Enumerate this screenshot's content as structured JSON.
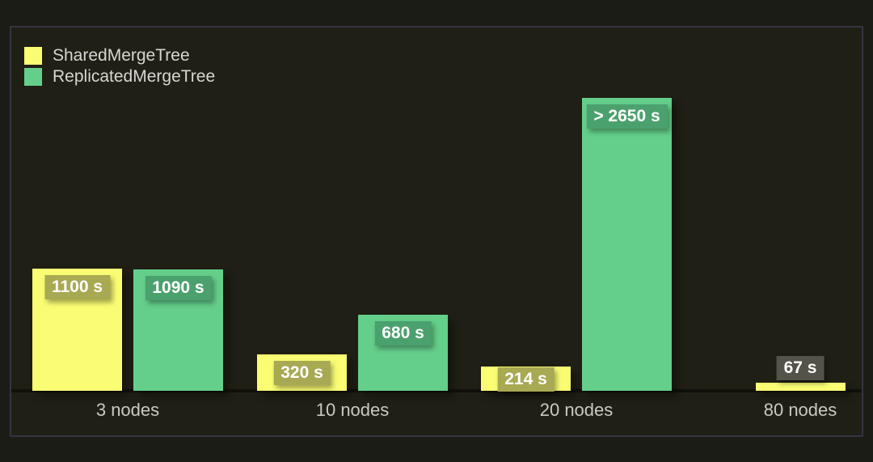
{
  "chart_data": {
    "type": "bar",
    "title": "",
    "xlabel": "",
    "ylabel": "",
    "unit": "seconds",
    "ylim": [
      0,
      3300
    ],
    "grid": false,
    "legend_position": "top-left",
    "categories": [
      "3 nodes",
      "10 nodes",
      "20 nodes",
      "80 nodes"
    ],
    "series": [
      {
        "name": "SharedMergeTree",
        "color": "#fafd73",
        "values": [
          1100,
          320,
          214,
          67
        ],
        "labels": [
          "1100 s",
          "320 s",
          "214 s",
          "67 s"
        ],
        "label_bg": [
          "#a8a953",
          "#a8a953",
          "#a8a953",
          "#555349"
        ],
        "label_pos": [
          "inside",
          "inside",
          "inside",
          "above"
        ]
      },
      {
        "name": "ReplicatedMergeTree",
        "color": "#64cf8b",
        "values": [
          1090,
          680,
          2650,
          null
        ],
        "labels": [
          "1090 s",
          "680 s",
          "> 2650 s",
          null
        ],
        "label_bg": [
          "#4ba16d",
          "#4ba16d",
          "#4ba16d",
          null
        ],
        "label_pos": [
          "inside",
          "inside",
          "inside",
          null
        ]
      }
    ]
  },
  "colors": {
    "page_background": "#1c1c17",
    "panel_background": "#201f15",
    "panel_border": "#35343f",
    "axis_text": "#c9c9c4",
    "legend_text": "#d6d6d2",
    "value_label_text": "#ffffff"
  }
}
